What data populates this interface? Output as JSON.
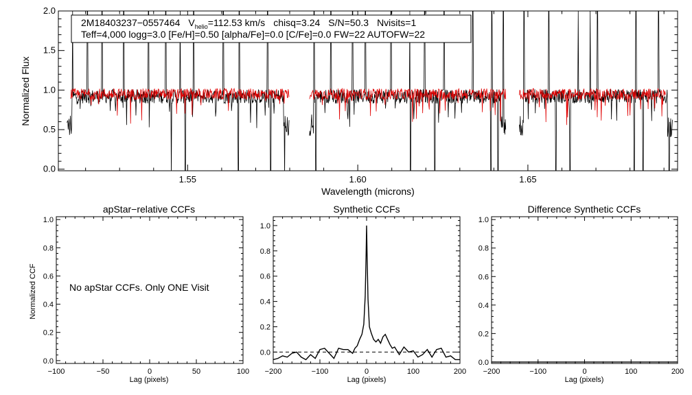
{
  "chart_data": [
    {
      "type": "line",
      "id": "spectrum",
      "title": "",
      "xlabel": "Wavelength (microns)",
      "ylabel": "Normalized Flux",
      "xlim": [
        1.512,
        1.694
      ],
      "ylim": [
        -0.02,
        2.0
      ],
      "xticks": [
        1.55,
        1.6,
        1.65
      ],
      "xtick_labels": [
        "1.55",
        "1.60",
        "1.65"
      ],
      "yticks": [
        0.0,
        0.5,
        1.0,
        1.5,
        2.0
      ],
      "ytick_labels": [
        "0.0",
        "0.5",
        "1.0",
        "1.5",
        "2.0"
      ],
      "info_lines": {
        "star_id": "2M18403237−0557464",
        "vhelio_prefix": "V",
        "vhelio_sub": "helio",
        "vhelio_value": "=112.53 km/s",
        "chisq": "chisq=3.24",
        "snr": "S/N=50.3",
        "nvisits": "Nvisits=1",
        "line2": "Teff=4,000 logg=3.0 [Fe/H]=0.50 [alpha/Fe]=0.0 [C/Fe]=0.0 FW=22 AUTOFW=22"
      },
      "series": [
        {
          "name": "observed",
          "color": "#000000",
          "level": 0.92,
          "noise": 0.09
        },
        {
          "name": "model",
          "color": "#e00000",
          "level": 0.95,
          "noise": 0.07
        }
      ],
      "segments": [
        [
          1.5145,
          1.5798
        ],
        [
          1.5858,
          1.6435
        ],
        [
          1.6475,
          1.6925
        ]
      ],
      "gaps": [
        [
          1.5798,
          1.5858
        ],
        [
          1.6435,
          1.6475
        ]
      ],
      "spikes": [
        1.5162,
        1.5205,
        1.5248,
        1.5312,
        1.5385,
        1.5436,
        1.5478,
        1.5518,
        1.5605,
        1.5652,
        1.5735,
        1.5872,
        1.5921,
        1.5985,
        1.6022,
        1.6098,
        1.6153,
        1.6196,
        1.6254,
        1.6338,
        1.6394,
        1.6428,
        1.6489,
        1.6561,
        1.6648,
        1.6683,
        1.6705,
        1.6818,
        1.6884
      ],
      "dips": [
        1.5142,
        1.5452,
        1.5493,
        1.5649,
        1.5744,
        1.5785,
        1.5877,
        1.6155,
        1.6226,
        1.6391,
        1.6412,
        1.6471,
        1.6582,
        1.6624,
        1.6813,
        1.6838,
        1.6915
      ]
    },
    {
      "type": "line",
      "id": "apstar",
      "title": "apStar−relative CCFs",
      "xlabel": "Lag (pixels)",
      "ylabel": "Normalized CCF",
      "xlim": [
        -100,
        100
      ],
      "ylim": [
        -0.02,
        1.02
      ],
      "xticks": [
        -100,
        -50,
        0,
        50,
        100
      ],
      "xtick_labels": [
        "−100",
        "−50",
        "0",
        "50",
        "100"
      ],
      "yticks": [
        0.0,
        0.2,
        0.4,
        0.6,
        0.8,
        1.0
      ],
      "ytick_labels": [
        "0.0",
        "0.2",
        "0.4",
        "0.6",
        "0.8",
        "1.0"
      ],
      "annotation": "No apStar CCFs.  Only ONE Visit",
      "series": []
    },
    {
      "type": "line",
      "id": "synthetic",
      "title": "Synthetic CCFs",
      "xlabel": "Lag (pixels)",
      "ylabel": "",
      "xlim": [
        -200,
        200
      ],
      "ylim": [
        -0.09,
        1.07
      ],
      "xticks": [
        -200,
        -100,
        0,
        100,
        200
      ],
      "xtick_labels": [
        "−200",
        "−100",
        "0",
        "100",
        "200"
      ],
      "yticks": [
        0.0,
        0.2,
        0.4,
        0.6,
        0.8,
        1.0
      ],
      "ytick_labels": [
        "0.0",
        "0.2",
        "0.4",
        "0.6",
        "0.8",
        "1.0"
      ],
      "baseline": 0.0,
      "series": [
        {
          "name": "ccf",
          "color": "#000000",
          "x": [
            -200,
            -190,
            -180,
            -170,
            -160,
            -150,
            -140,
            -130,
            -120,
            -110,
            -100,
            -90,
            -80,
            -70,
            -60,
            -50,
            -40,
            -30,
            -25,
            -20,
            -15,
            -10,
            -6,
            -3,
            -1,
            0,
            1,
            3,
            6,
            10,
            15,
            20,
            25,
            30,
            35,
            40,
            45,
            50,
            55,
            60,
            70,
            80,
            90,
            100,
            110,
            120,
            130,
            140,
            150,
            160,
            170,
            180,
            190,
            200
          ],
          "y": [
            -0.06,
            -0.05,
            -0.03,
            -0.04,
            -0.01,
            0.0,
            -0.04,
            -0.06,
            -0.02,
            -0.05,
            0.02,
            0.03,
            -0.01,
            -0.05,
            0.03,
            0.02,
            0.02,
            -0.01,
            0.03,
            0.05,
            0.1,
            0.14,
            0.22,
            0.44,
            0.78,
            1.0,
            0.78,
            0.42,
            0.2,
            0.15,
            0.1,
            0.08,
            0.1,
            0.07,
            0.12,
            0.14,
            0.1,
            0.06,
            0.03,
            0.04,
            -0.02,
            0.04,
            0.0,
            0.01,
            -0.04,
            -0.02,
            0.02,
            -0.04,
            0.02,
            0.03,
            -0.04,
            -0.03,
            -0.06,
            -0.06
          ]
        }
      ]
    },
    {
      "type": "line",
      "id": "difference",
      "title": "Difference Synthetic CCFs",
      "xlabel": "Lag (pixels)",
      "ylabel": "",
      "xlim": [
        -200,
        200
      ],
      "ylim": [
        -0.01,
        1.02
      ],
      "xticks": [
        -200,
        -100,
        0,
        100,
        200
      ],
      "xtick_labels": [
        "−200",
        "−100",
        "0",
        "100",
        "200"
      ],
      "yticks": [
        0.0,
        0.2,
        0.4,
        0.6,
        0.8,
        1.0
      ],
      "ytick_labels": [
        "0.0",
        "0.2",
        "0.4",
        "0.6",
        "0.8",
        "1.0"
      ],
      "series": [
        {
          "name": "diff",
          "color": "#000000",
          "x": [
            -200,
            200
          ],
          "y": [
            0.0,
            0.0
          ]
        }
      ]
    }
  ]
}
